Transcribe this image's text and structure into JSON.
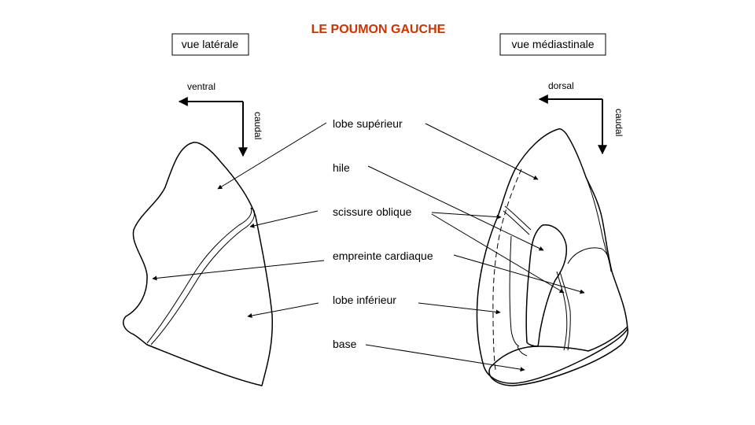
{
  "title": "LE POUMON GAUCHE",
  "colors": {
    "title": "#cc3300",
    "ink": "#000000"
  },
  "views": {
    "lateral": {
      "label": "vue latérale",
      "horizontal_dir": "ventral",
      "vertical_dir": "caudal"
    },
    "medial": {
      "label": "vue médiastinale",
      "horizontal_dir": "dorsal",
      "vertical_dir": "caudal"
    }
  },
  "labels": {
    "upper_lobe": "lobe supérieur",
    "hilum": "hile",
    "oblique_fissure": "scissure oblique",
    "cardiac_impression": "empreinte cardiaque",
    "lower_lobe": "lobe inférieur",
    "base": "base"
  }
}
